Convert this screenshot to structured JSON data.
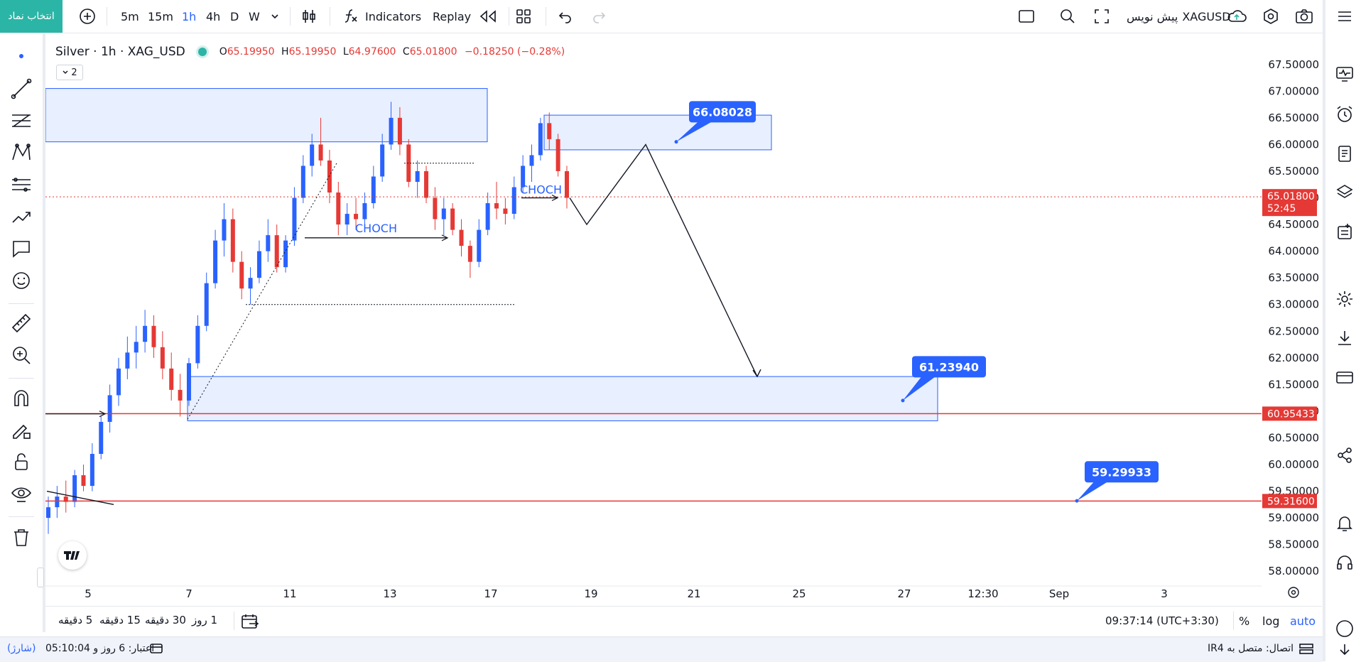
{
  "toolbar": {
    "symbol_button": "انتخاب نماد",
    "add_icon": "plus-circle-icon",
    "timeframes": [
      "5m",
      "15m",
      "1h",
      "4h",
      "D",
      "W"
    ],
    "active_timeframe": "1h",
    "indicators_label": "Indicators",
    "replay_label": "Replay",
    "symbol_name": "XAGUSD",
    "publish_label": "پیش نویس"
  },
  "legend": {
    "title": "Silver · 1h · XAG_USD",
    "open_label": "O",
    "open": "65.19950",
    "high_label": "H",
    "high": "65.19950",
    "low_label": "L",
    "low": "64.97600",
    "close_label": "C",
    "close": "65.01800",
    "change": "−0.18250 (−0.28%)",
    "collapse_count": "2"
  },
  "colors": {
    "up": "#2962ff",
    "down": "#e53935",
    "zone_fill": "#e8efff",
    "zone_border": "#2962ff",
    "label_bg": "#2962ff",
    "red_line": "#e53935",
    "accent": "#2bb5a6"
  },
  "chart_data": {
    "type": "candlestick",
    "symbol": "XAG_USD",
    "interval": "1h",
    "ylim": [
      57.75,
      67.75
    ],
    "y_ticks": [
      "67.50000",
      "67.00000",
      "66.50000",
      "66.00000",
      "65.50000",
      "65.00000",
      "64.50000",
      "64.00000",
      "63.50000",
      "63.00000",
      "62.50000",
      "62.00000",
      "61.50000",
      "61.00000",
      "60.50000",
      "60.00000",
      "59.50000",
      "59.00000",
      "58.50000",
      "58.00000"
    ],
    "x_ticks": [
      "5",
      "7",
      "11",
      "13",
      "17",
      "19",
      "21",
      "25",
      "27",
      "12:30",
      "Sep",
      "3"
    ],
    "current_price": {
      "value": "65.01800",
      "countdown": "52:45"
    },
    "horizontal_lines": [
      {
        "value": 60.95433,
        "label": "60.95433"
      },
      {
        "value": 59.316,
        "label": "59.31600"
      }
    ],
    "zones": [
      {
        "from": 66.05,
        "to": 67.05,
        "range": "left edge to 11-13 Aug"
      },
      {
        "from": 65.9,
        "to": 66.55,
        "range": "17-25 Aug"
      },
      {
        "from": 60.82,
        "to": 61.65,
        "range": "7-27 Aug"
      }
    ],
    "price_labels": [
      "66.08028",
      "61.23940",
      "59.29933"
    ],
    "annotations": [
      "CHOCH",
      "CHOCH"
    ],
    "path_points": [
      {
        "x": "18",
        "y": 65.0
      },
      {
        "x": "19",
        "y": 64.5
      },
      {
        "x": "20",
        "y": 66.0
      },
      {
        "x": "23",
        "y": 61.65
      }
    ],
    "candles_approx": [
      [
        59.0,
        59.4,
        58.7,
        59.2
      ],
      [
        59.2,
        59.6,
        59.0,
        59.4
      ],
      [
        59.4,
        59.7,
        59.1,
        59.3
      ],
      [
        59.3,
        59.9,
        59.2,
        59.8
      ],
      [
        59.8,
        60.0,
        59.5,
        59.6
      ],
      [
        59.6,
        60.4,
        59.5,
        60.2
      ],
      [
        60.2,
        60.9,
        60.1,
        60.8
      ],
      [
        60.8,
        61.5,
        60.6,
        61.3
      ],
      [
        61.3,
        62.0,
        61.1,
        61.8
      ],
      [
        61.8,
        62.4,
        61.6,
        62.1
      ],
      [
        62.1,
        62.6,
        61.8,
        62.3
      ],
      [
        62.3,
        62.9,
        62.1,
        62.6
      ],
      [
        62.6,
        62.8,
        62.0,
        62.2
      ],
      [
        62.2,
        62.5,
        61.6,
        61.8
      ],
      [
        61.8,
        62.1,
        61.2,
        61.4
      ],
      [
        61.4,
        61.7,
        60.9,
        61.2
      ],
      [
        61.2,
        62.0,
        61.1,
        61.9
      ],
      [
        61.9,
        62.8,
        61.8,
        62.6
      ],
      [
        62.6,
        63.6,
        62.5,
        63.4
      ],
      [
        63.4,
        64.4,
        63.3,
        64.2
      ],
      [
        64.2,
        64.9,
        63.9,
        64.6
      ],
      [
        64.6,
        64.8,
        63.6,
        63.8
      ],
      [
        63.8,
        64.0,
        63.1,
        63.3
      ],
      [
        63.3,
        63.7,
        63.0,
        63.5
      ],
      [
        63.5,
        64.2,
        63.4,
        64.0
      ],
      [
        64.0,
        64.6,
        63.8,
        64.3
      ],
      [
        64.3,
        64.5,
        63.6,
        63.7
      ],
      [
        63.7,
        64.3,
        63.6,
        64.2
      ],
      [
        64.2,
        65.2,
        64.1,
        65.0
      ],
      [
        65.0,
        65.8,
        64.9,
        65.6
      ],
      [
        65.6,
        66.2,
        65.4,
        66.0
      ],
      [
        66.0,
        66.5,
        65.6,
        65.7
      ],
      [
        65.7,
        65.9,
        64.9,
        65.1
      ],
      [
        65.1,
        65.3,
        64.3,
        64.5
      ],
      [
        64.5,
        64.9,
        64.3,
        64.7
      ],
      [
        64.7,
        65.0,
        64.4,
        64.6
      ],
      [
        64.6,
        65.1,
        64.5,
        64.9
      ],
      [
        64.9,
        65.6,
        64.8,
        65.4
      ],
      [
        65.4,
        66.2,
        65.3,
        66.0
      ],
      [
        66.0,
        66.8,
        65.9,
        66.5
      ],
      [
        66.5,
        66.7,
        65.8,
        66.0
      ],
      [
        66.0,
        66.1,
        65.2,
        65.3
      ],
      [
        65.3,
        65.7,
        65.0,
        65.5
      ],
      [
        65.5,
        65.6,
        64.9,
        65.0
      ],
      [
        65.0,
        65.2,
        64.4,
        64.6
      ],
      [
        64.6,
        65.0,
        64.3,
        64.8
      ],
      [
        64.8,
        64.9,
        64.3,
        64.4
      ],
      [
        64.4,
        64.6,
        63.9,
        64.1
      ],
      [
        64.1,
        64.2,
        63.5,
        63.8
      ],
      [
        63.8,
        64.6,
        63.7,
        64.4
      ],
      [
        64.4,
        65.1,
        64.3,
        64.9
      ],
      [
        64.9,
        65.3,
        64.6,
        64.8
      ],
      [
        64.8,
        65.0,
        64.5,
        64.7
      ],
      [
        64.7,
        65.4,
        64.6,
        65.2
      ],
      [
        65.2,
        65.8,
        65.1,
        65.6
      ],
      [
        65.6,
        66.0,
        65.3,
        65.8
      ],
      [
        65.8,
        66.5,
        65.7,
        66.4
      ],
      [
        66.4,
        66.6,
        65.9,
        66.1
      ],
      [
        66.1,
        66.2,
        65.4,
        65.5
      ],
      [
        65.5,
        65.6,
        64.8,
        65.0
      ]
    ]
  },
  "bottom": {
    "ranges": [
      "5 دقیقه",
      "15 دقیقه",
      "30 دقیقه",
      "1 روز"
    ],
    "time": "09:37:14 (UTC+3:30)",
    "percent": "%",
    "log": "log",
    "auto": "auto"
  },
  "status": {
    "credit": "اعتبار: 6 روز و 05:10:04",
    "charge": "(شارژ)",
    "connection": "اتصال: متصل به IR4"
  }
}
